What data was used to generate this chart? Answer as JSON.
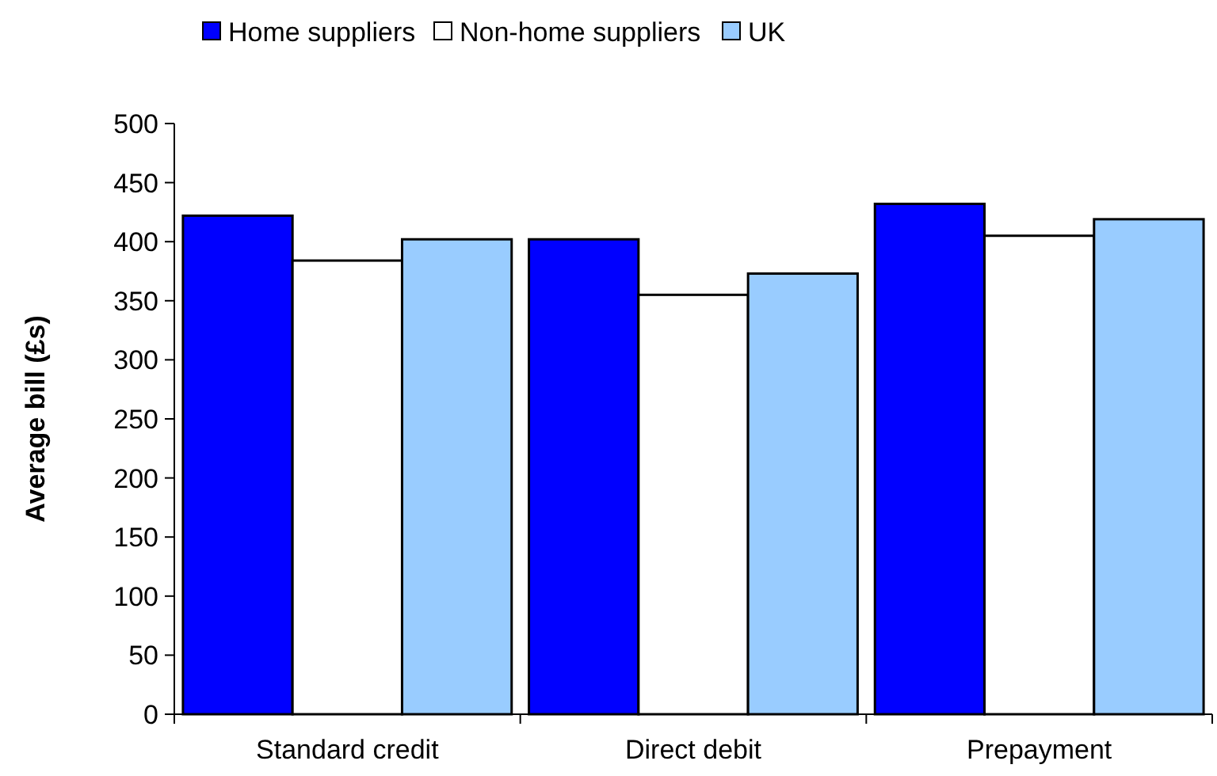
{
  "chart_data": {
    "type": "bar",
    "ylabel": "Average bill (£s)",
    "categories": [
      "Standard credit",
      "Direct debit",
      "Prepayment"
    ],
    "series": [
      {
        "name": "Home suppliers",
        "color": "#0000ff",
        "values": [
          422,
          402,
          432
        ]
      },
      {
        "name": "Non-home suppliers",
        "color": "#ffffff",
        "values": [
          384,
          355,
          405
        ]
      },
      {
        "name": "UK",
        "color": "#99ccff",
        "values": [
          402,
          373,
          419
        ]
      }
    ],
    "ylim": [
      0,
      500
    ],
    "yticks": [
      0,
      50,
      100,
      150,
      200,
      250,
      300,
      350,
      400,
      450,
      500
    ],
    "grid": false,
    "legend": "top"
  }
}
